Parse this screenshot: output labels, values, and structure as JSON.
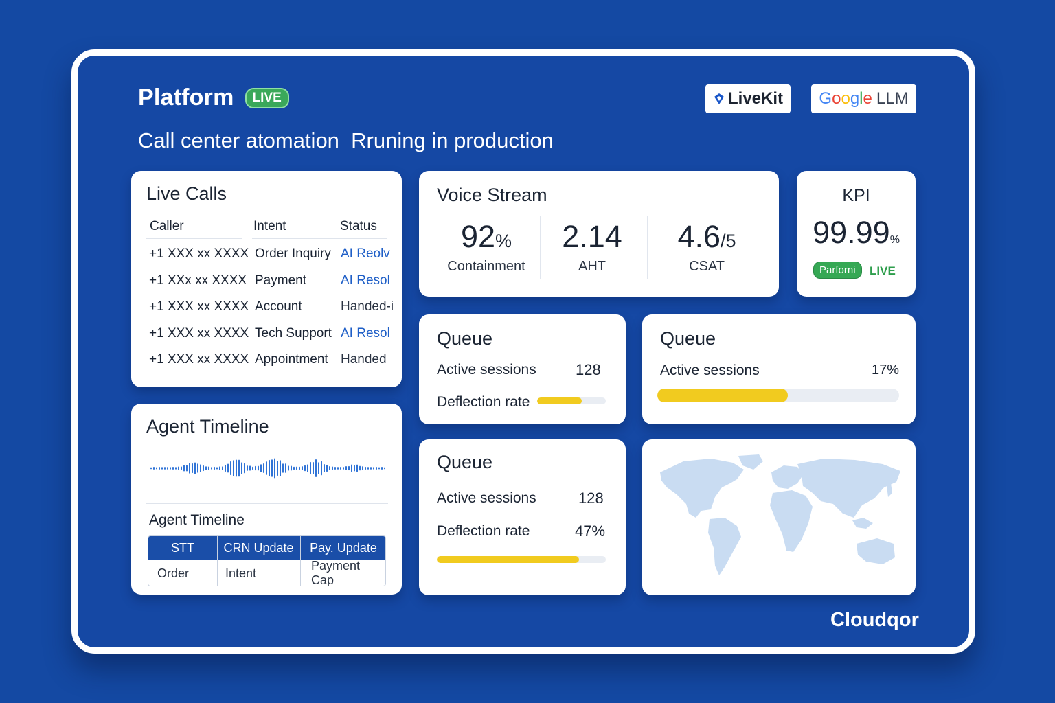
{
  "header": {
    "title": "Platform",
    "live_badge": "LIVE",
    "subtitle": "Call center atomation  Rruning in production",
    "brands": {
      "livekit": "LiveKit",
      "google_g1": "G",
      "google_o1": "o",
      "google_o2": "o",
      "google_g2": "g",
      "google_l": "l",
      "google_e": "e",
      "llm": "LLM"
    }
  },
  "live_calls": {
    "title": "Live Calls",
    "columns": [
      "Caller",
      "Intent",
      "Status"
    ],
    "rows": [
      {
        "caller": "+1 XXX xx XXXX",
        "intent": "Order Inquiry",
        "status": "AI Reolv"
      },
      {
        "caller": "+1 XXx xx XXXX",
        "intent": "Payment",
        "status": "AI Resol"
      },
      {
        "caller": "+1 XXX xx XXXX",
        "intent": "Account",
        "status": "Handed-i"
      },
      {
        "caller": "+1 XXX xx XXXX",
        "intent": "Tech Support",
        "status": "AI Resol"
      },
      {
        "caller": "+1 XXX xx XXXX",
        "intent": "Appointment",
        "status": "Handed"
      }
    ]
  },
  "agent_timeline": {
    "title": "Agent Timeline",
    "subtitle": "Agent Timeline",
    "table": {
      "headers": [
        "STT",
        "CRN Update",
        "Pay. Update"
      ],
      "cells": [
        "Order",
        "Intent",
        "Payment Cap"
      ]
    }
  },
  "voice_stream": {
    "title": "Voice Stream",
    "metrics": [
      {
        "value": "92",
        "unit": "%",
        "label": "Containment"
      },
      {
        "value": "2.14",
        "unit": "",
        "label": "AHT"
      },
      {
        "value": "4.6",
        "unit": "/5",
        "label": "CSAT"
      }
    ]
  },
  "kpi": {
    "title": "KPI",
    "value": "99.99",
    "unit": "%",
    "pill": "Parforni",
    "live": "LIVE"
  },
  "queues": [
    {
      "title": "Queue",
      "active_label": "Active sessions",
      "active_value": "128",
      "deflection_label": "Deflection rate",
      "deflection_fill": 0.65
    },
    {
      "title": "Queue",
      "active_label": "Active sessions",
      "active_value": "17%",
      "bar_fill": 0.54
    },
    {
      "title": "Queue",
      "active_label": "Active sessions",
      "active_value": "128",
      "deflection_label": "Deflection rate",
      "deflection_value": "47%",
      "bar_fill": 0.84
    }
  ],
  "colors": {
    "background": "#1449a3",
    "live_green": "#3aa85a",
    "accent_blue": "#1f5fc7",
    "bar_yellow": "#f1cb1f"
  },
  "icons": {
    "livekit": "livekit-logo-icon",
    "map": "world-map"
  },
  "footer": {
    "brand": "Cloudqor"
  }
}
